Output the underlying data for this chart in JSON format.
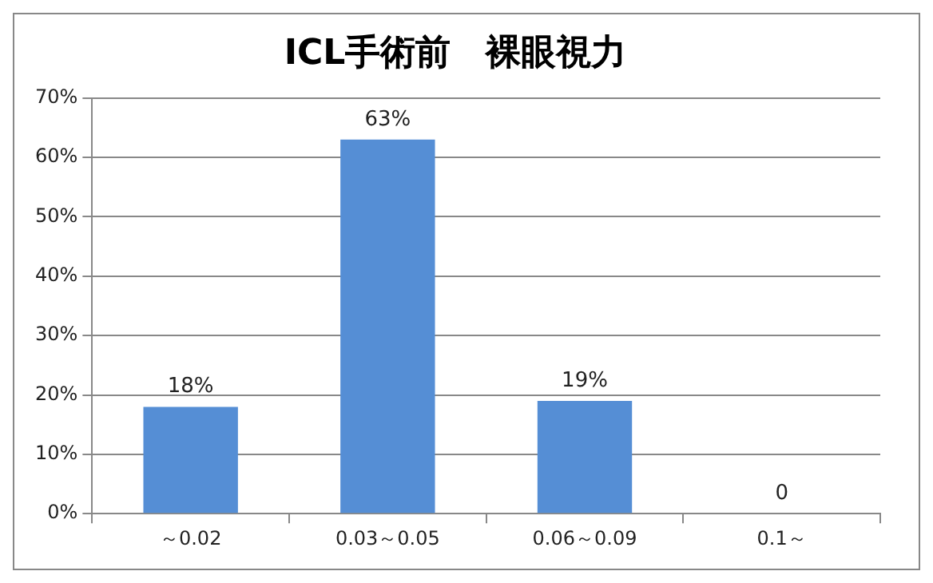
{
  "chart_data": {
    "type": "bar",
    "title": "ICL手術前　裸眼視力",
    "categories": [
      "～0.02",
      "0.03～0.05",
      "0.06～0.09",
      "0.1～"
    ],
    "series": [
      {
        "color": "#558ed5",
        "values": [
          18,
          63,
          19,
          0
        ],
        "value_labels": [
          "18%",
          "63%",
          "19%",
          "0"
        ]
      }
    ],
    "ylim": [
      0,
      70
    ],
    "yticks": [
      {
        "value": 0,
        "label": "0%"
      },
      {
        "value": 10,
        "label": "10%"
      },
      {
        "value": 20,
        "label": "20%"
      },
      {
        "value": 30,
        "label": "30%"
      },
      {
        "value": 40,
        "label": "40%"
      },
      {
        "value": 50,
        "label": "50%"
      },
      {
        "value": 60,
        "label": "60%"
      },
      {
        "value": 70,
        "label": "70%"
      }
    ],
    "grid": "y",
    "legend": false
  }
}
